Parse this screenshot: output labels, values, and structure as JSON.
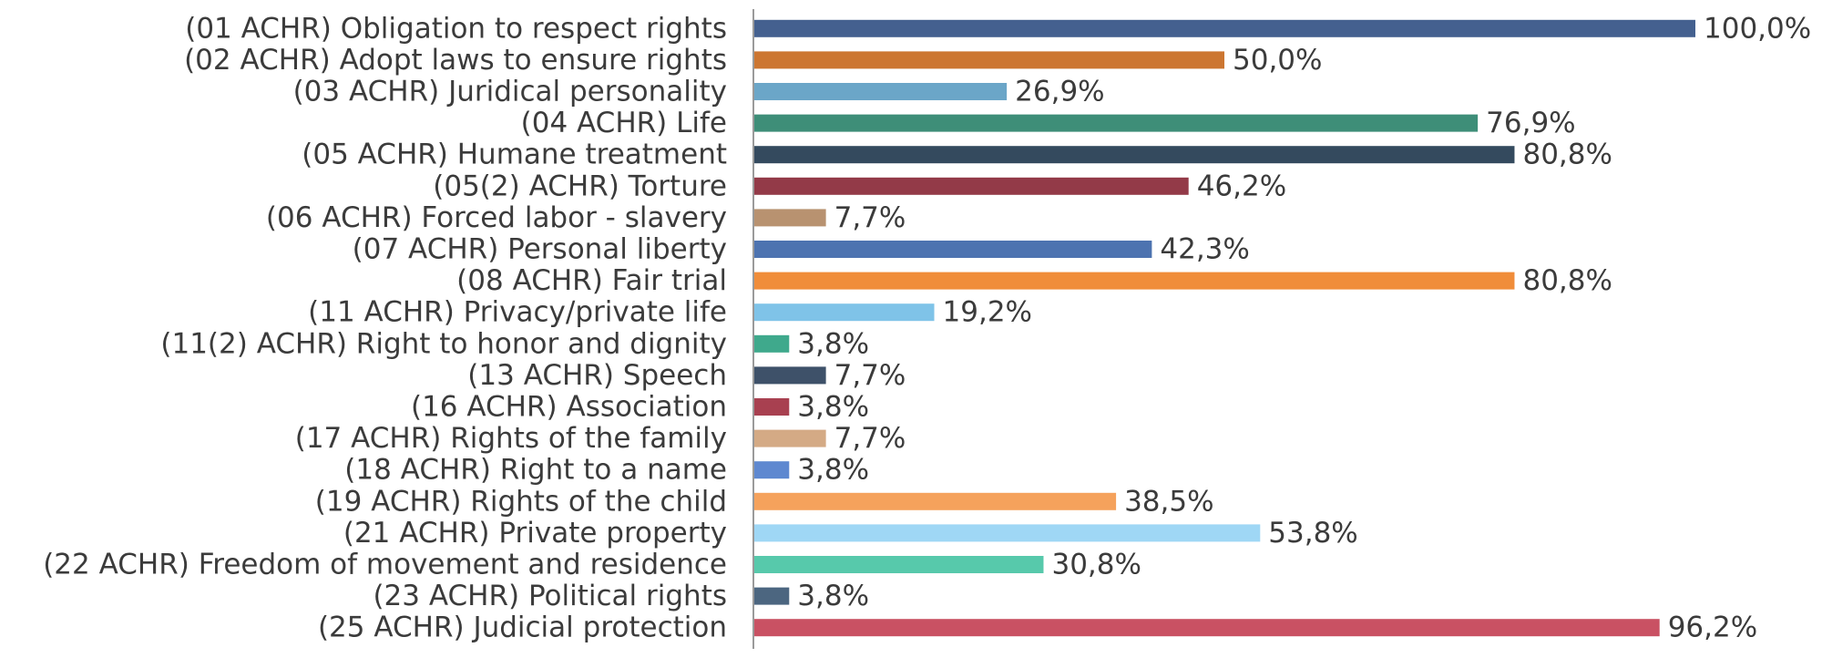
{
  "chart_data": {
    "type": "bar",
    "orientation": "horizontal",
    "title": "",
    "xlabel": "",
    "ylabel": "",
    "xlim": [
      0,
      100
    ],
    "grid": false,
    "legend": "none",
    "categories": [
      "(01 ACHR) Obligation to respect rights",
      "(02 ACHR) Adopt laws to ensure rights",
      "(03 ACHR) Juridical personality",
      "(04 ACHR) Life",
      "(05 ACHR) Humane treatment",
      "(05(2) ACHR) Torture",
      "(06 ACHR) Forced labor - slavery",
      "(07 ACHR) Personal liberty",
      "(08 ACHR) Fair trial",
      "(11 ACHR) Privacy/private life",
      "(11(2) ACHR) Right to honor and dignity",
      "(13 ACHR) Speech",
      "(16 ACHR) Association",
      "(17 ACHR) Rights of the family",
      "(18 ACHR) Right to a name",
      "(19 ACHR) Rights of the child",
      "(21 ACHR) Private property",
      "(22 ACHR) Freedom of movement and residence",
      "(23 ACHR) Political rights",
      "(25 ACHR) Judicial protection"
    ],
    "values": [
      100.0,
      50.0,
      26.9,
      76.9,
      80.8,
      46.2,
      7.7,
      42.3,
      80.8,
      19.2,
      3.8,
      7.7,
      3.8,
      7.7,
      3.8,
      38.5,
      53.8,
      30.8,
      3.8,
      96.2
    ],
    "value_labels": [
      "100,0%",
      "50,0%",
      "26,9%",
      "76,9%",
      "80,8%",
      "46,2%",
      "7,7%",
      "42,3%",
      "80,8%",
      "19,2%",
      "3,8%",
      "7,7%",
      "3,8%",
      "7,7%",
      "3,8%",
      "38,5%",
      "53,8%",
      "30,8%",
      "3,8%",
      "96,2%"
    ],
    "colors": [
      "#44608f",
      "#cc7631",
      "#6ba6c8",
      "#3e8e78",
      "#344a5e",
      "#933a48",
      "#b89270",
      "#4d73b0",
      "#f08d3a",
      "#7fc3e8",
      "#3fa98c",
      "#3e5169",
      "#a84050",
      "#d4aa85",
      "#5e88d0",
      "#f5a25c",
      "#9fd7f5",
      "#57c9ab",
      "#4c6680",
      "#c95163"
    ]
  }
}
